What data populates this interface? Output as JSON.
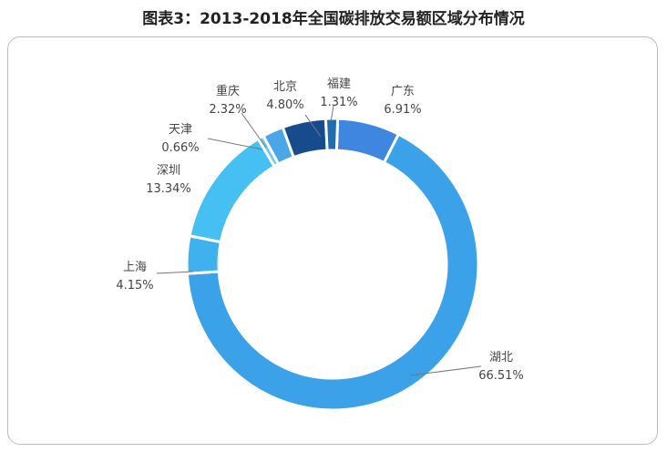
{
  "title": "图表3：2013-2018年全国碳排放交易额区域分布情况",
  "chart_data": {
    "type": "pie",
    "donut": true,
    "title": "图表3：2013-2018年全国碳排放交易额区域分布情况",
    "categories": [
      "广东",
      "湖北",
      "上海",
      "深圳",
      "天津",
      "重庆",
      "北京",
      "福建"
    ],
    "values": [
      6.91,
      66.51,
      4.15,
      13.34,
      0.66,
      2.32,
      4.8,
      1.31
    ],
    "labels": [
      "6.91%",
      "66.51%",
      "4.15%",
      "13.34%",
      "0.66%",
      "2.32%",
      "4.80%",
      "1.31%"
    ],
    "colors": [
      "#3e86df",
      "#3ba2ea",
      "#3fb1ee",
      "#46bff2",
      "#6cc8f0",
      "#4aa6e6",
      "#164b8d",
      "#1f6cb0"
    ],
    "legend": "none"
  }
}
